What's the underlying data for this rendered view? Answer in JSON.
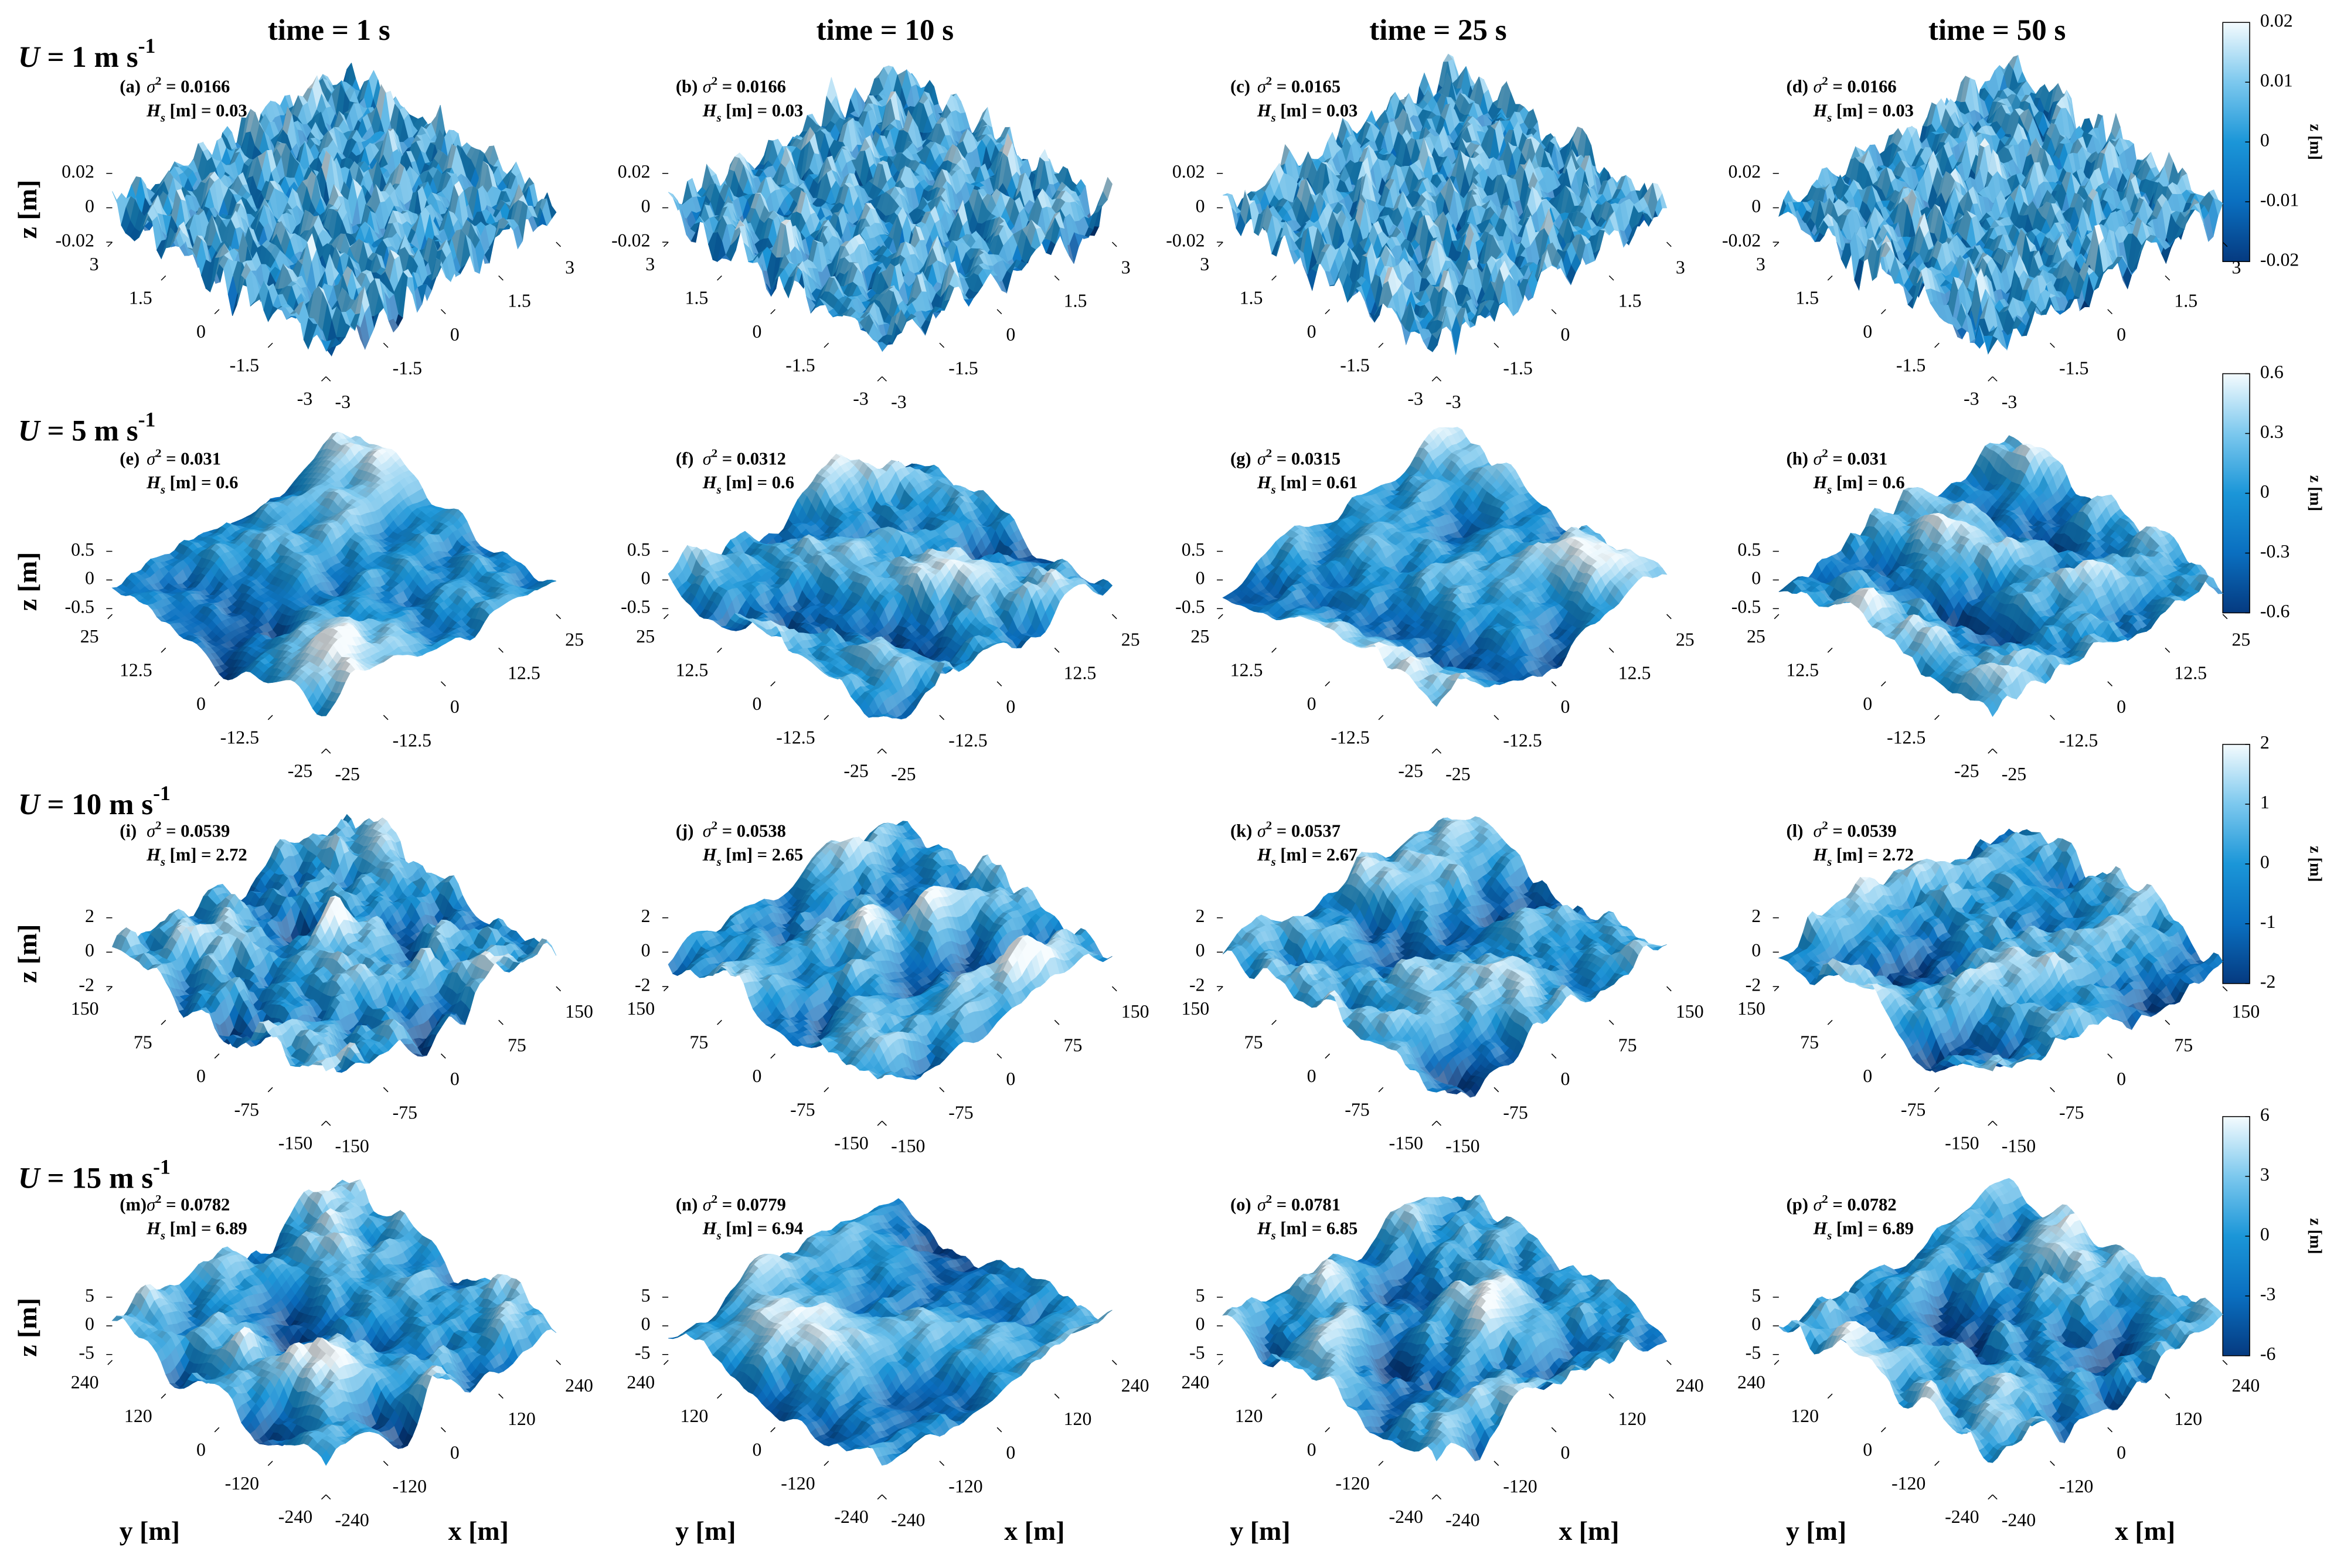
{
  "column_titles": [
    "time = 1 s",
    "time = 10 s",
    "time = 25 s",
    "time = 50 s"
  ],
  "row_labels": [
    {
      "symbol": "U",
      "text": " = 1 m s",
      "sup": "-1"
    },
    {
      "symbol": "U",
      "text": " = 5 m s",
      "sup": "-1"
    },
    {
      "symbol": "U",
      "text": " = 10 m s",
      "sup": "-1"
    },
    {
      "symbol": "U",
      "text": " = 15 m s",
      "sup": "-1"
    }
  ],
  "z_axis_label": "z [m]",
  "x_axis_label": "x [m]",
  "y_axis_label": "y [m]",
  "colormap": [
    "#053a80",
    "#0a6fc0",
    "#1b96d8",
    "#7cc8ee",
    "#f4fbfe"
  ],
  "colorbars": [
    {
      "label": "z [m]",
      "clim": [
        -0.02,
        0.02
      ],
      "ticks": [
        -0.02,
        -0.01,
        0,
        0.01,
        0.02
      ]
    },
    {
      "label": "z [m]",
      "clim": [
        -0.6,
        0.6
      ],
      "ticks": [
        -0.6,
        -0.3,
        0,
        0.3,
        0.6
      ]
    },
    {
      "label": "z [m]",
      "clim": [
        -2,
        2
      ],
      "ticks": [
        -2,
        -1,
        0,
        1,
        2
      ]
    },
    {
      "label": "z [m]",
      "clim": [
        -6,
        6
      ],
      "ticks": [
        -6,
        -3,
        0,
        3,
        6
      ]
    }
  ],
  "chart_data": [
    {
      "type": "surface",
      "panel": "(a)",
      "sigma": {
        "symbol": "σ",
        "sup": "2",
        "text": " = 0.0166"
      },
      "hs": {
        "symbol": "H",
        "sub": "s",
        "text": " [m] = 0.03"
      },
      "xlim": [
        -3,
        3
      ],
      "ylim": [
        -3,
        3
      ],
      "zlim": [
        -0.02,
        0.02
      ],
      "xticks": [
        -3,
        -1.5,
        0,
        1.5,
        3
      ],
      "yticks": [
        -3,
        -1.5,
        0,
        1.5,
        3
      ],
      "zticks": [
        -0.02,
        0,
        0.02
      ]
    },
    {
      "type": "surface",
      "panel": "(b)",
      "sigma": {
        "symbol": "σ",
        "sup": "2",
        "text": " = 0.0166"
      },
      "hs": {
        "symbol": "H",
        "sub": "s",
        "text": " [m] = 0.03"
      },
      "xlim": [
        -3,
        3
      ],
      "ylim": [
        -3,
        3
      ],
      "zlim": [
        -0.02,
        0.02
      ],
      "xticks": [
        -3,
        -1.5,
        0,
        1.5,
        3
      ],
      "yticks": [
        -3,
        -1.5,
        0,
        1.5,
        3
      ],
      "zticks": [
        -0.02,
        0,
        0.02
      ]
    },
    {
      "type": "surface",
      "panel": "(c)",
      "sigma": {
        "symbol": "σ",
        "sup": "2",
        "text": " = 0.0165"
      },
      "hs": {
        "symbol": "H",
        "sub": "s",
        "text": " [m] = 0.03"
      },
      "xlim": [
        -3,
        3
      ],
      "ylim": [
        -3,
        3
      ],
      "zlim": [
        -0.02,
        0.02
      ],
      "xticks": [
        -3,
        -1.5,
        0,
        1.5,
        3
      ],
      "yticks": [
        -3,
        -1.5,
        0,
        1.5,
        3
      ],
      "zticks": [
        -0.02,
        0,
        0.02
      ]
    },
    {
      "type": "surface",
      "panel": "(d)",
      "sigma": {
        "symbol": "σ",
        "sup": "2",
        "text": " = 0.0166"
      },
      "hs": {
        "symbol": "H",
        "sub": "s",
        "text": " [m] = 0.03"
      },
      "xlim": [
        -3,
        3
      ],
      "ylim": [
        -3,
        3
      ],
      "zlim": [
        -0.02,
        0.02
      ],
      "xticks": [
        -3,
        -1.5,
        0,
        1.5,
        3
      ],
      "yticks": [
        -3,
        -1.5,
        0,
        1.5,
        3
      ],
      "zticks": [
        -0.02,
        0,
        0.02
      ]
    },
    {
      "type": "surface",
      "panel": "(e)",
      "sigma": {
        "symbol": "σ",
        "sup": "2",
        "text": " = 0.031"
      },
      "hs": {
        "symbol": "H",
        "sub": "s",
        "text": " [m] = 0.6"
      },
      "xlim": [
        -25,
        25
      ],
      "ylim": [
        -25,
        25
      ],
      "zlim": [
        -0.6,
        0.6
      ],
      "xticks": [
        -25,
        -12.5,
        0,
        12.5,
        25
      ],
      "yticks": [
        -25,
        -12.5,
        0,
        12.5,
        25
      ],
      "zticks": [
        -0.5,
        0,
        0.5
      ]
    },
    {
      "type": "surface",
      "panel": "(f)",
      "sigma": {
        "symbol": "σ",
        "sup": "2",
        "text": " = 0.0312"
      },
      "hs": {
        "symbol": "H",
        "sub": "s",
        "text": " [m] = 0.6"
      },
      "xlim": [
        -25,
        25
      ],
      "ylim": [
        -25,
        25
      ],
      "zlim": [
        -0.6,
        0.6
      ],
      "xticks": [
        -25,
        -12.5,
        0,
        12.5,
        25
      ],
      "yticks": [
        -25,
        -12.5,
        0,
        12.5,
        25
      ],
      "zticks": [
        -0.5,
        0,
        0.5
      ]
    },
    {
      "type": "surface",
      "panel": "(g)",
      "sigma": {
        "symbol": "σ",
        "sup": "2",
        "text": " = 0.0315"
      },
      "hs": {
        "symbol": "H",
        "sub": "s",
        "text": " [m] = 0.61"
      },
      "xlim": [
        -25,
        25
      ],
      "ylim": [
        -25,
        25
      ],
      "zlim": [
        -0.6,
        0.6
      ],
      "xticks": [
        -25,
        -12.5,
        0,
        12.5,
        25
      ],
      "yticks": [
        -25,
        -12.5,
        0,
        12.5,
        25
      ],
      "zticks": [
        -0.5,
        0,
        0.5
      ]
    },
    {
      "type": "surface",
      "panel": "(h)",
      "sigma": {
        "symbol": "σ",
        "sup": "2",
        "text": " = 0.031"
      },
      "hs": {
        "symbol": "H",
        "sub": "s",
        "text": " [m] = 0.6"
      },
      "xlim": [
        -25,
        25
      ],
      "ylim": [
        -25,
        25
      ],
      "zlim": [
        -0.6,
        0.6
      ],
      "xticks": [
        -25,
        -12.5,
        0,
        12.5,
        25
      ],
      "yticks": [
        -25,
        -12.5,
        0,
        12.5,
        25
      ],
      "zticks": [
        -0.5,
        0,
        0.5
      ]
    },
    {
      "type": "surface",
      "panel": "(i)",
      "sigma": {
        "symbol": "σ",
        "sup": "2",
        "text": " = 0.0539"
      },
      "hs": {
        "symbol": "H",
        "sub": "s",
        "text": " [m] = 2.72"
      },
      "xlim": [
        -150,
        150
      ],
      "ylim": [
        -150,
        150
      ],
      "zlim": [
        -2,
        2
      ],
      "xticks": [
        -150,
        -75,
        0,
        75,
        150
      ],
      "yticks": [
        -150,
        -75,
        0,
        75,
        150
      ],
      "zticks": [
        -2,
        0,
        2
      ]
    },
    {
      "type": "surface",
      "panel": "(j)",
      "sigma": {
        "symbol": "σ",
        "sup": "2",
        "text": " = 0.0538"
      },
      "hs": {
        "symbol": "H",
        "sub": "s",
        "text": " [m] = 2.65"
      },
      "xlim": [
        -150,
        150
      ],
      "ylim": [
        -150,
        150
      ],
      "zlim": [
        -2,
        2
      ],
      "xticks": [
        -150,
        -75,
        0,
        75,
        150
      ],
      "yticks": [
        -150,
        -75,
        0,
        75,
        150
      ],
      "zticks": [
        -2,
        0,
        2
      ]
    },
    {
      "type": "surface",
      "panel": "(k)",
      "sigma": {
        "symbol": "σ",
        "sup": "2",
        "text": " = 0.0537"
      },
      "hs": {
        "symbol": "H",
        "sub": "s",
        "text": " [m] = 2.67"
      },
      "xlim": [
        -150,
        150
      ],
      "ylim": [
        -150,
        150
      ],
      "zlim": [
        -2,
        2
      ],
      "xticks": [
        -150,
        -75,
        0,
        75,
        150
      ],
      "yticks": [
        -150,
        -75,
        0,
        75,
        150
      ],
      "zticks": [
        -2,
        0,
        2
      ]
    },
    {
      "type": "surface",
      "panel": "(l)",
      "sigma": {
        "symbol": "σ",
        "sup": "2",
        "text": " = 0.0539"
      },
      "hs": {
        "symbol": "H",
        "sub": "s",
        "text": " [m] = 2.72"
      },
      "xlim": [
        -150,
        150
      ],
      "ylim": [
        -150,
        150
      ],
      "zlim": [
        -2,
        2
      ],
      "xticks": [
        -150,
        -75,
        0,
        75,
        150
      ],
      "yticks": [
        -150,
        -75,
        0,
        75,
        150
      ],
      "zticks": [
        -2,
        0,
        2
      ]
    },
    {
      "type": "surface",
      "panel": "(m)",
      "sigma": {
        "symbol": "σ",
        "sup": "2",
        "text": " = 0.0782"
      },
      "hs": {
        "symbol": "H",
        "sub": "s",
        "text": " [m] = 6.89"
      },
      "xlim": [
        -240,
        240
      ],
      "ylim": [
        -240,
        240
      ],
      "zlim": [
        -6,
        6
      ],
      "xticks": [
        -240,
        -120,
        0,
        120,
        240
      ],
      "yticks": [
        -240,
        -120,
        0,
        120,
        240
      ],
      "zticks": [
        -5,
        0,
        5
      ]
    },
    {
      "type": "surface",
      "panel": "(n)",
      "sigma": {
        "symbol": "σ",
        "sup": "2",
        "text": " = 0.0779"
      },
      "hs": {
        "symbol": "H",
        "sub": "s",
        "text": " [m] = 6.94"
      },
      "xlim": [
        -240,
        240
      ],
      "ylim": [
        -240,
        240
      ],
      "zlim": [
        -6,
        6
      ],
      "xticks": [
        -240,
        -120,
        0,
        120,
        240
      ],
      "yticks": [
        -240,
        -120,
        0,
        120,
        240
      ],
      "zticks": [
        -5,
        0,
        5
      ]
    },
    {
      "type": "surface",
      "panel": "(o)",
      "sigma": {
        "symbol": "σ",
        "sup": "2",
        "text": " = 0.0781"
      },
      "hs": {
        "symbol": "H",
        "sub": "s",
        "text": " [m] = 6.85"
      },
      "xlim": [
        -240,
        240
      ],
      "ylim": [
        -240,
        240
      ],
      "zlim": [
        -6,
        6
      ],
      "xticks": [
        -240,
        -120,
        0,
        120,
        240
      ],
      "yticks": [
        -240,
        -120,
        0,
        120,
        240
      ],
      "zticks": [
        -5,
        0,
        5
      ]
    },
    {
      "type": "surface",
      "panel": "(p)",
      "sigma": {
        "symbol": "σ",
        "sup": "2",
        "text": " = 0.0782"
      },
      "hs": {
        "symbol": "H",
        "sub": "s",
        "text": " [m] = 6.89"
      },
      "xlim": [
        -240,
        240
      ],
      "ylim": [
        -240,
        240
      ],
      "zlim": [
        -6,
        6
      ],
      "xticks": [
        -240,
        -120,
        0,
        120,
        240
      ],
      "yticks": [
        -240,
        -120,
        0,
        120,
        240
      ],
      "zticks": [
        -5,
        0,
        5
      ]
    }
  ]
}
